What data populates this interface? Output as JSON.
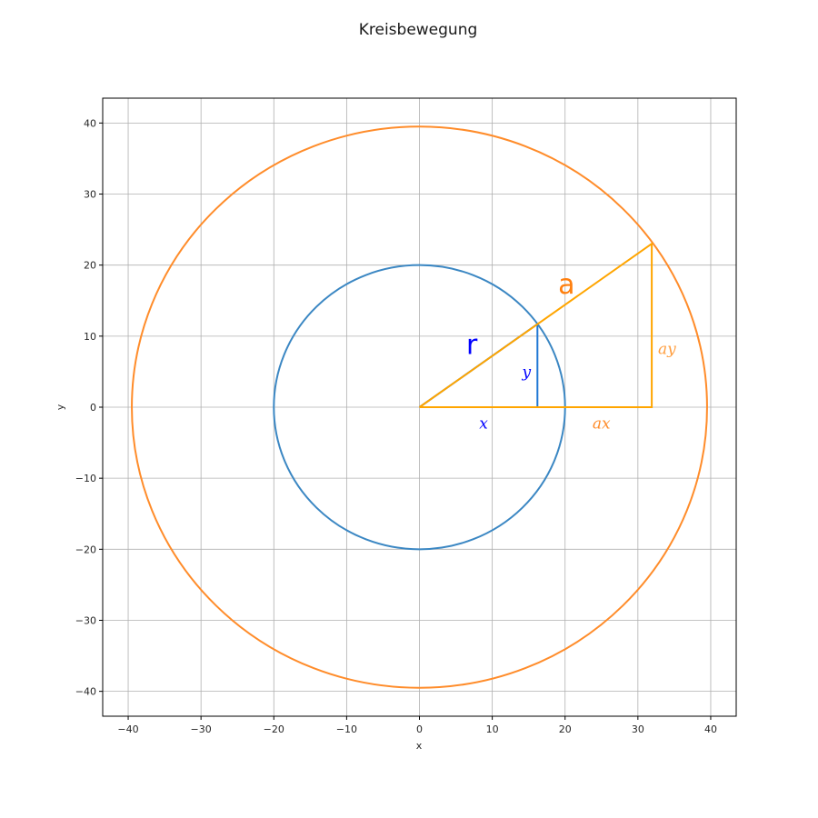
{
  "chart_data": {
    "type": "line",
    "title": "Kreisbewegung",
    "xlabel": "x",
    "ylabel": "y",
    "xlim": [
      -43.5,
      43.5
    ],
    "ylim": [
      -43.5,
      43.5
    ],
    "xticks": [
      -40,
      -30,
      -20,
      -10,
      0,
      10,
      20,
      30,
      40
    ],
    "yticks": [
      -40,
      -30,
      -20,
      -10,
      0,
      10,
      20,
      30,
      40
    ],
    "grid": true,
    "colors": {
      "inner_circle": "#3b87c3",
      "outer_circle": "#ff8c2a",
      "r_line": "#1f77d4",
      "a_line": "#ffa500",
      "label_r": "#0000ff",
      "label_a": "#ff7f0e",
      "label_x": "#0000ff",
      "label_y": "#0000ff",
      "label_ax": "#ff8c2a",
      "label_ay": "#ff9d3d",
      "grid": "#b0b0b0"
    },
    "circles": [
      {
        "cx": 0,
        "cy": 0,
        "r": 20,
        "color_key": "inner_circle"
      },
      {
        "cx": 0,
        "cy": 0,
        "r": 39.5,
        "color_key": "outer_circle"
      }
    ],
    "polylines": [
      {
        "color_key": "r_line",
        "points": [
          [
            0,
            0
          ],
          [
            16.2,
            11.7
          ],
          [
            16.2,
            0
          ],
          [
            0,
            0
          ]
        ]
      },
      {
        "color_key": "a_line",
        "points": [
          [
            0,
            0
          ],
          [
            31.9,
            23
          ],
          [
            31.9,
            0
          ],
          [
            0,
            0
          ]
        ]
      }
    ],
    "annotations": [
      {
        "text": "r",
        "x": 7.2,
        "y": 7.5,
        "color_key": "label_r",
        "size": 30,
        "style": "plain"
      },
      {
        "text": "a",
        "x": 20.2,
        "y": 16,
        "color_key": "label_a",
        "size": 30,
        "style": "plain"
      },
      {
        "text": "x",
        "x": 8.8,
        "y": -3.0,
        "color_key": "label_x",
        "size": 17,
        "style": "math"
      },
      {
        "text": "y",
        "x": 14.7,
        "y": 4.2,
        "color_key": "label_y",
        "size": 17,
        "style": "math"
      },
      {
        "text": "ax",
        "x": 25,
        "y": -3.0,
        "color_key": "label_ax",
        "size": 17,
        "style": "math"
      },
      {
        "text": "ay",
        "x": 34.0,
        "y": 7.5,
        "color_key": "label_ay",
        "size": 17,
        "style": "math"
      }
    ]
  }
}
